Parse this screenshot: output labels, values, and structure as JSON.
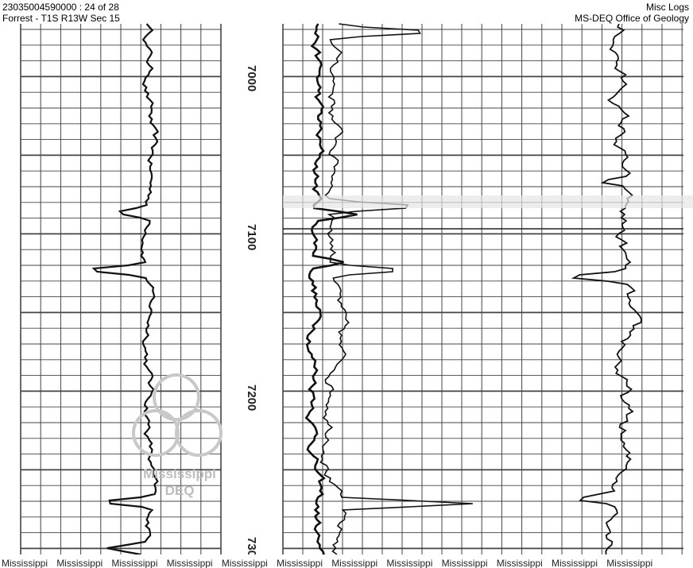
{
  "header": {
    "left": [
      "23035004590000 : 24 of 28",
      "Forrest - T1S R13W Sec 15"
    ],
    "right": [
      "Misc Logs",
      "MS-DEQ Office of Geology"
    ]
  },
  "depth_labels": [
    "7000",
    "7100",
    "7200",
    "730"
  ],
  "watermark": [
    "Mississippi",
    "DEQ"
  ],
  "footer_labels": [
    "Mississippi",
    "Mississippi",
    "Mississippi",
    "Mississippi",
    "Mississippi",
    "Mississippi",
    "Mississippi",
    "Mississippi",
    "Mississippi",
    "Mississippi",
    "Mississippi",
    "Mississippi"
  ]
}
